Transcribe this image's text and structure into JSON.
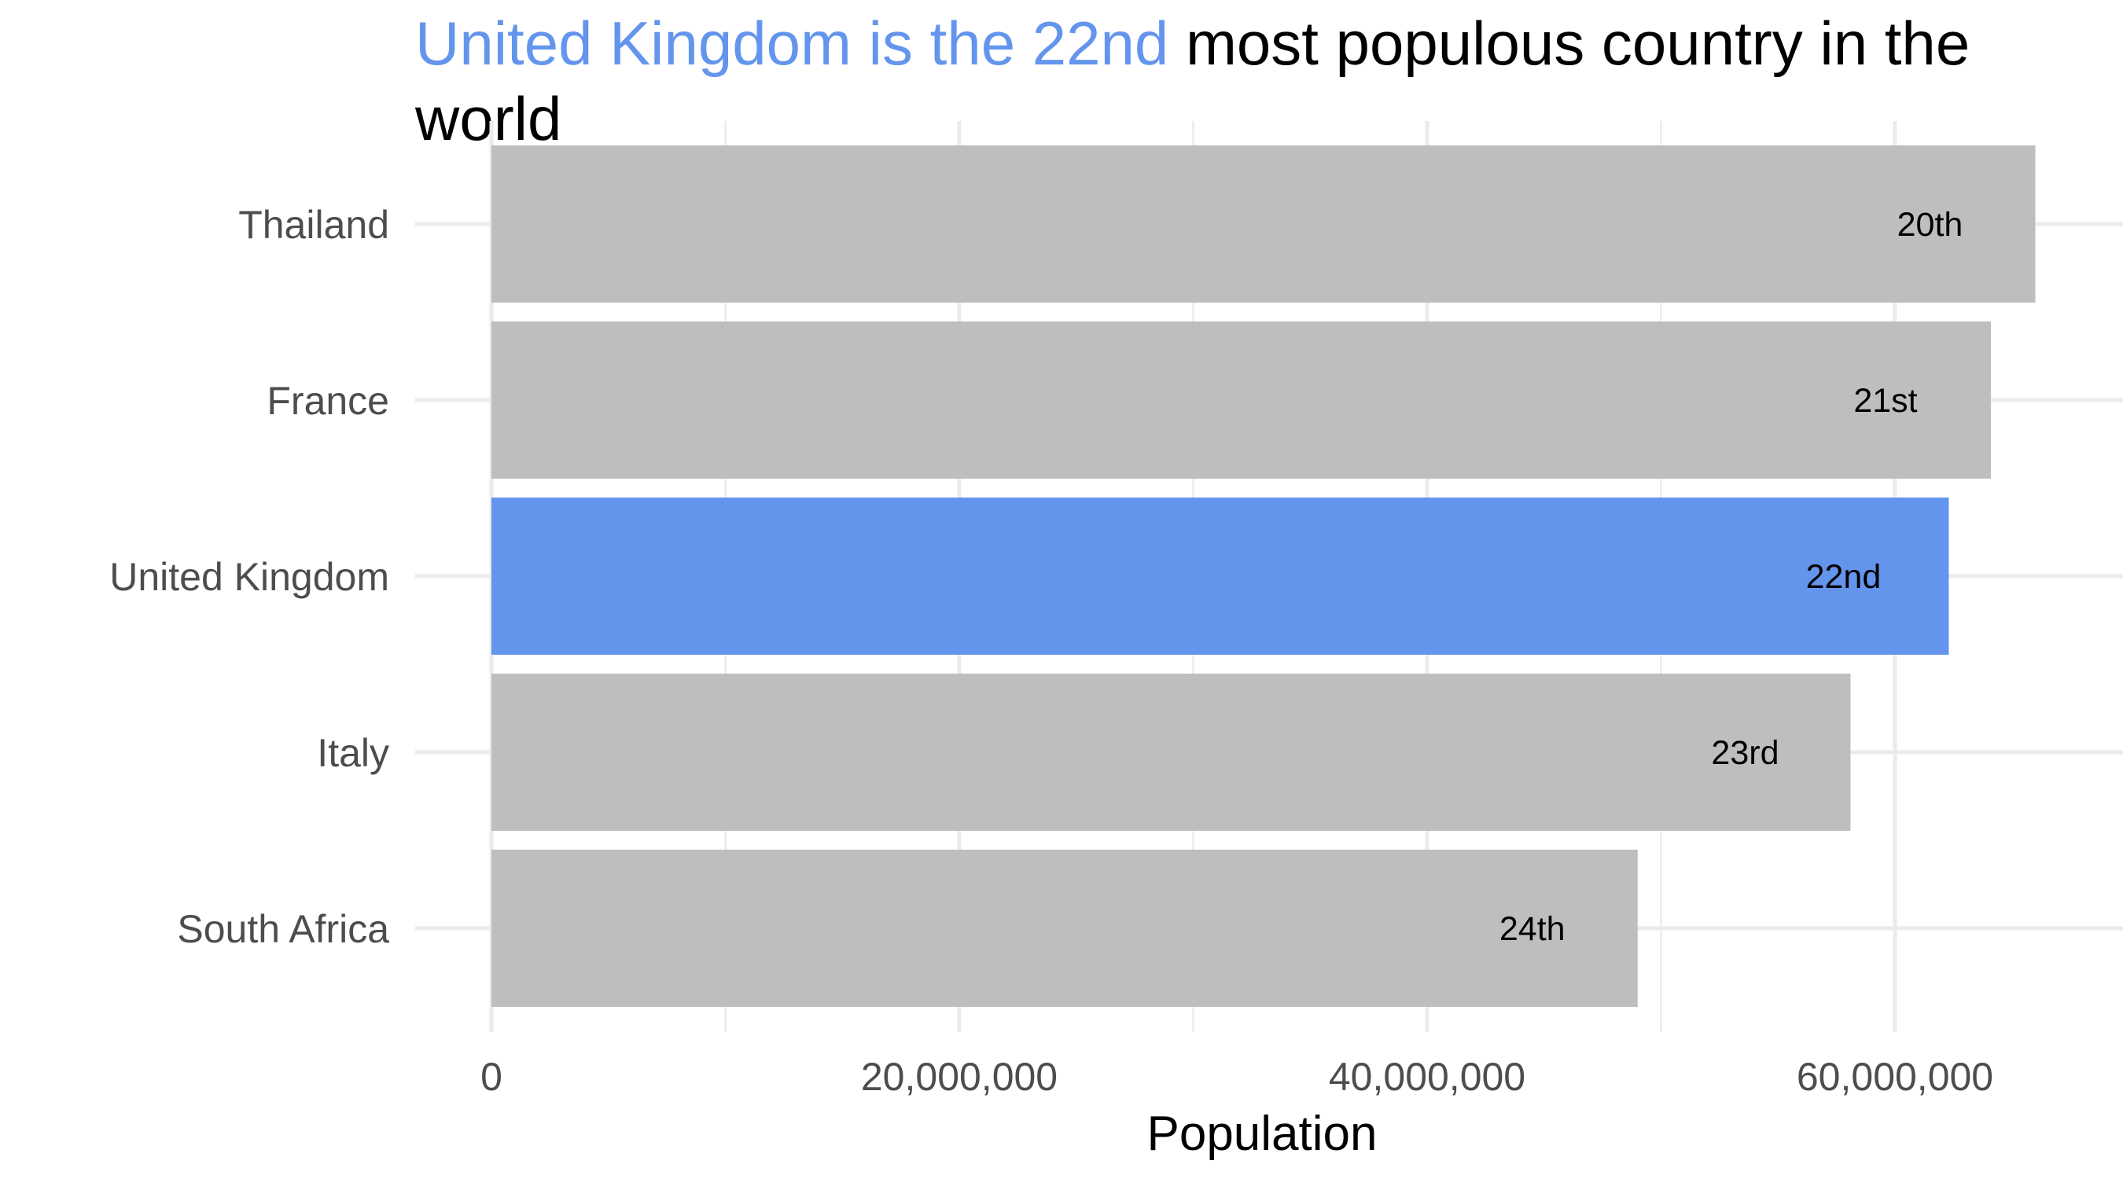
{
  "chart_data": {
    "type": "bar",
    "orientation": "horizontal",
    "title": {
      "highlight": "United Kingdom is the 22nd",
      "rest": " most populous country in the",
      "line2": "world"
    },
    "xlabel": "Population",
    "ylabel": "",
    "categories": [
      "Thailand",
      "France",
      "United Kingdom",
      "Italy",
      "South Africa"
    ],
    "values": [
      66000000,
      64100000,
      62300000,
      58100000,
      49000000
    ],
    "data_labels": [
      "20th",
      "21st",
      "22nd",
      "23rd",
      "24th"
    ],
    "highlighted_category": "United Kingdom",
    "xlim": [
      0,
      69000000
    ],
    "xticks": [
      0,
      20000000,
      40000000,
      60000000
    ],
    "xtick_labels": [
      "0",
      "20,000,000",
      "40,000,000",
      "60,000,000"
    ],
    "grid": true,
    "legend": "none",
    "colors": {
      "default_bar": "#bebebe",
      "highlight_bar": "#6495ed",
      "highlight_text": "#6495ed",
      "grid": "#ebebeb"
    }
  }
}
